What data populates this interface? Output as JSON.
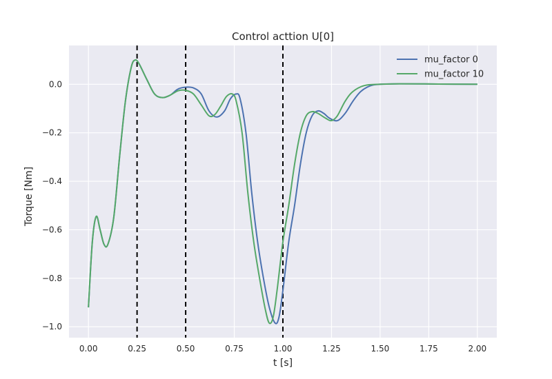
{
  "chart_data": {
    "type": "line",
    "title": "Control acttion U[0]",
    "xlabel": "t [s]",
    "ylabel": "Torque [Nm]",
    "xlim": [
      -0.1,
      2.1
    ],
    "ylim": [
      -1.045,
      0.16
    ],
    "xticks": [
      0.0,
      0.25,
      0.5,
      0.75,
      1.0,
      1.25,
      1.5,
      1.75,
      2.0
    ],
    "xtick_labels": [
      "0.00",
      "0.25",
      "0.50",
      "0.75",
      "1.00",
      "1.25",
      "1.50",
      "1.75",
      "2.00"
    ],
    "yticks": [
      0.0,
      -0.2,
      -0.4,
      -0.6,
      -0.8,
      -1.0
    ],
    "ytick_labels": [
      "0.0",
      "−0.2",
      "−0.4",
      "−0.6",
      "−0.8",
      "−1.0"
    ],
    "grid": true,
    "legend_position": "upper right",
    "vlines": [
      0.25,
      0.5,
      1.0
    ],
    "series": [
      {
        "name": "mu_factor 0",
        "color": "#4c72b0",
        "points": [
          [
            0.0,
            -0.92
          ],
          [
            0.02,
            -0.65
          ],
          [
            0.04,
            -0.545
          ],
          [
            0.06,
            -0.6
          ],
          [
            0.08,
            -0.66
          ],
          [
            0.1,
            -0.66
          ],
          [
            0.13,
            -0.55
          ],
          [
            0.16,
            -0.3
          ],
          [
            0.19,
            -0.07
          ],
          [
            0.22,
            0.07
          ],
          [
            0.24,
            0.1
          ],
          [
            0.26,
            0.085
          ],
          [
            0.3,
            0.02
          ],
          [
            0.34,
            -0.04
          ],
          [
            0.38,
            -0.055
          ],
          [
            0.42,
            -0.045
          ],
          [
            0.46,
            -0.02
          ],
          [
            0.5,
            -0.012
          ],
          [
            0.54,
            -0.015
          ],
          [
            0.58,
            -0.04
          ],
          [
            0.62,
            -0.11
          ],
          [
            0.66,
            -0.135
          ],
          [
            0.7,
            -0.11
          ],
          [
            0.73,
            -0.06
          ],
          [
            0.76,
            -0.04
          ],
          [
            0.78,
            -0.06
          ],
          [
            0.81,
            -0.2
          ],
          [
            0.84,
            -0.45
          ],
          [
            0.87,
            -0.65
          ],
          [
            0.9,
            -0.8
          ],
          [
            0.93,
            -0.92
          ],
          [
            0.96,
            -0.985
          ],
          [
            0.98,
            -0.96
          ],
          [
            1.0,
            -0.85
          ],
          [
            1.03,
            -0.65
          ],
          [
            1.06,
            -0.5
          ],
          [
            1.09,
            -0.33
          ],
          [
            1.12,
            -0.2
          ],
          [
            1.15,
            -0.13
          ],
          [
            1.18,
            -0.11
          ],
          [
            1.21,
            -0.12
          ],
          [
            1.24,
            -0.14
          ],
          [
            1.28,
            -0.15
          ],
          [
            1.32,
            -0.12
          ],
          [
            1.36,
            -0.07
          ],
          [
            1.4,
            -0.03
          ],
          [
            1.45,
            -0.006
          ],
          [
            1.5,
            0.0
          ],
          [
            1.6,
            0.002
          ],
          [
            1.8,
            0.001
          ],
          [
            2.0,
            0.0
          ]
        ]
      },
      {
        "name": "mu_factor 10",
        "color": "#55a868",
        "points": [
          [
            0.0,
            -0.92
          ],
          [
            0.02,
            -0.65
          ],
          [
            0.04,
            -0.545
          ],
          [
            0.06,
            -0.6
          ],
          [
            0.08,
            -0.66
          ],
          [
            0.1,
            -0.66
          ],
          [
            0.13,
            -0.55
          ],
          [
            0.16,
            -0.3
          ],
          [
            0.19,
            -0.07
          ],
          [
            0.22,
            0.07
          ],
          [
            0.24,
            0.1
          ],
          [
            0.26,
            0.085
          ],
          [
            0.3,
            0.02
          ],
          [
            0.34,
            -0.04
          ],
          [
            0.38,
            -0.055
          ],
          [
            0.42,
            -0.045
          ],
          [
            0.46,
            -0.027
          ],
          [
            0.5,
            -0.025
          ],
          [
            0.54,
            -0.04
          ],
          [
            0.58,
            -0.085
          ],
          [
            0.62,
            -0.13
          ],
          [
            0.65,
            -0.125
          ],
          [
            0.68,
            -0.09
          ],
          [
            0.71,
            -0.05
          ],
          [
            0.74,
            -0.04
          ],
          [
            0.76,
            -0.07
          ],
          [
            0.79,
            -0.2
          ],
          [
            0.82,
            -0.45
          ],
          [
            0.85,
            -0.65
          ],
          [
            0.88,
            -0.8
          ],
          [
            0.91,
            -0.93
          ],
          [
            0.93,
            -0.985
          ],
          [
            0.95,
            -0.96
          ],
          [
            0.97,
            -0.85
          ],
          [
            1.0,
            -0.65
          ],
          [
            1.03,
            -0.5
          ],
          [
            1.06,
            -0.33
          ],
          [
            1.09,
            -0.2
          ],
          [
            1.12,
            -0.13
          ],
          [
            1.15,
            -0.113
          ],
          [
            1.18,
            -0.12
          ],
          [
            1.22,
            -0.14
          ],
          [
            1.25,
            -0.15
          ],
          [
            1.28,
            -0.13
          ],
          [
            1.32,
            -0.07
          ],
          [
            1.36,
            -0.03
          ],
          [
            1.42,
            -0.005
          ],
          [
            1.5,
            0.0
          ],
          [
            1.6,
            0.002
          ],
          [
            1.8,
            0.001
          ],
          [
            2.0,
            0.0
          ]
        ]
      }
    ]
  }
}
